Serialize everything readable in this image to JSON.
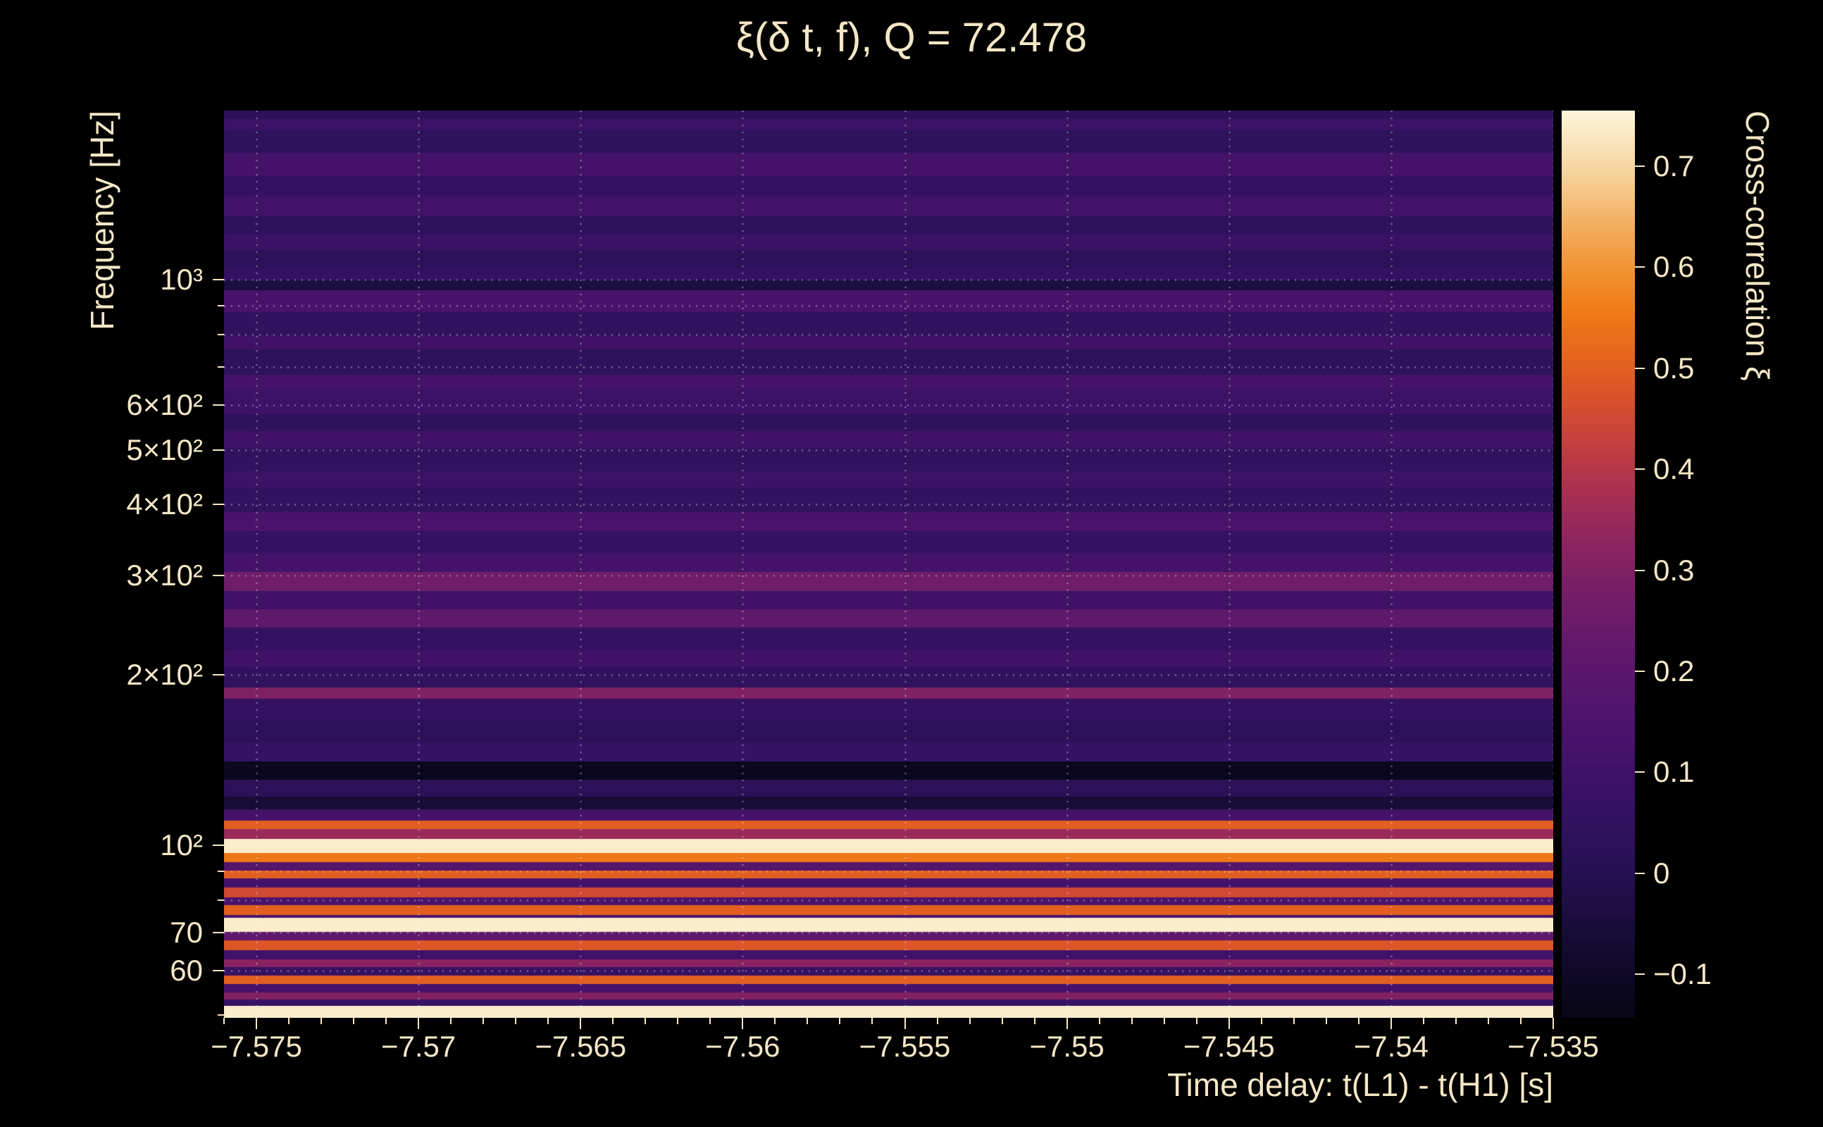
{
  "chart_data": {
    "type": "heatmap",
    "title": "ξ(δ t, f), Q = 72.478",
    "xlabel": "Time delay: t(L1) - t(H1) [s]",
    "ylabel": "Frequency [Hz]",
    "colorbar_label": "Cross-correlation ξ",
    "x_range": [
      -7.576,
      -7.535
    ],
    "x_minor_step": 0.001,
    "y_range_hz": [
      49.5,
      1990
    ],
    "y_scale": "log",
    "color_range": [
      -0.143,
      0.755
    ],
    "x_ticks": [
      {
        "v": -7.575,
        "label": "−7.575"
      },
      {
        "v": -7.57,
        "label": "−7.57"
      },
      {
        "v": -7.565,
        "label": "−7.565"
      },
      {
        "v": -7.56,
        "label": "−7.56"
      },
      {
        "v": -7.555,
        "label": "−7.555"
      },
      {
        "v": -7.55,
        "label": "−7.55"
      },
      {
        "v": -7.545,
        "label": "−7.545"
      },
      {
        "v": -7.54,
        "label": "−7.54"
      },
      {
        "v": -7.535,
        "label": "−7.535"
      }
    ],
    "y_ticks": [
      {
        "v": 1000,
        "label": "10³"
      },
      {
        "v": 600,
        "label": "6×10²"
      },
      {
        "v": 500,
        "label": "5×10²"
      },
      {
        "v": 400,
        "label": "4×10²"
      },
      {
        "v": 300,
        "label": "3×10²"
      },
      {
        "v": 200,
        "label": "2×10²"
      },
      {
        "v": 100,
        "label": "10²"
      },
      {
        "v": 70,
        "label": "70"
      },
      {
        "v": 60,
        "label": "60"
      }
    ],
    "y_minor_ticks": [
      50,
      80,
      90,
      700,
      800,
      900
    ],
    "grid_y": [
      60,
      70,
      80,
      90,
      100,
      200,
      300,
      400,
      500,
      600,
      700,
      800,
      900,
      1000
    ],
    "colorbar_ticks": [
      {
        "v": 0.7,
        "label": "0.7"
      },
      {
        "v": 0.6,
        "label": "0.6"
      },
      {
        "v": 0.5,
        "label": "0.5"
      },
      {
        "v": 0.4,
        "label": "0.4"
      },
      {
        "v": 0.3,
        "label": "0.3"
      },
      {
        "v": 0.2,
        "label": "0.2"
      },
      {
        "v": 0.1,
        "label": "0.1"
      },
      {
        "v": 0,
        "label": "0"
      },
      {
        "v": -0.1,
        "label": "−0.1"
      }
    ],
    "colormap_stops": [
      [
        0.0,
        "#070515"
      ],
      [
        0.08,
        "#140b31"
      ],
      [
        0.16,
        "#251153"
      ],
      [
        0.24,
        "#371264"
      ],
      [
        0.32,
        "#4b136b"
      ],
      [
        0.4,
        "#5f186c"
      ],
      [
        0.46,
        "#731d68"
      ],
      [
        0.52,
        "#8b2460"
      ],
      [
        0.58,
        "#a93052"
      ],
      [
        0.63,
        "#c23f40"
      ],
      [
        0.68,
        "#d8502c"
      ],
      [
        0.73,
        "#e6651d"
      ],
      [
        0.78,
        "#f07c16"
      ],
      [
        0.83,
        "#f29537"
      ],
      [
        0.88,
        "#f3b265"
      ],
      [
        0.93,
        "#f6d39b"
      ],
      [
        1.0,
        "#fdf5dc"
      ]
    ],
    "bands": [
      [
        49.5,
        52,
        0.74
      ],
      [
        52,
        53.5,
        0.08
      ],
      [
        53.5,
        55,
        0.3
      ],
      [
        55,
        57,
        0.12
      ],
      [
        57,
        59,
        0.5
      ],
      [
        59,
        61,
        0.07
      ],
      [
        61,
        63,
        0.32
      ],
      [
        63,
        65.5,
        0.1
      ],
      [
        65.5,
        68,
        0.48
      ],
      [
        68,
        70.5,
        0.22
      ],
      [
        70.5,
        74.5,
        0.74
      ],
      [
        74.5,
        75.5,
        0.15
      ],
      [
        75.5,
        78.5,
        0.5
      ],
      [
        78.5,
        81,
        0.14
      ],
      [
        81,
        84.5,
        0.45
      ],
      [
        84.5,
        87.5,
        0.12
      ],
      [
        87.5,
        90.5,
        0.5
      ],
      [
        90.5,
        93.5,
        0.18
      ],
      [
        93.5,
        97,
        0.55
      ],
      [
        97,
        103,
        0.74
      ],
      [
        103,
        107,
        0.35
      ],
      [
        107,
        111,
        0.5
      ],
      [
        111,
        116,
        0.12
      ],
      [
        116,
        122,
        -0.06
      ],
      [
        122,
        131,
        0.02
      ],
      [
        131,
        141,
        -0.12
      ],
      [
        141,
        152,
        0.07
      ],
      [
        152,
        167,
        0.03
      ],
      [
        167,
        182,
        0.06
      ],
      [
        182,
        191,
        0.3
      ],
      [
        191,
        207,
        0.05
      ],
      [
        207,
        222,
        0.1
      ],
      [
        222,
        243,
        0.06
      ],
      [
        243,
        262,
        0.22
      ],
      [
        262,
        282,
        0.1
      ],
      [
        282,
        305,
        0.26
      ],
      [
        305,
        330,
        0.12
      ],
      [
        330,
        360,
        0.06
      ],
      [
        360,
        390,
        0.14
      ],
      [
        390,
        430,
        0.05
      ],
      [
        430,
        460,
        0.09
      ],
      [
        460,
        505,
        0.05
      ],
      [
        505,
        540,
        0.1
      ],
      [
        540,
        580,
        0.04
      ],
      [
        580,
        640,
        0.09
      ],
      [
        640,
        680,
        0.12
      ],
      [
        680,
        755,
        0.04
      ],
      [
        755,
        800,
        0.1
      ],
      [
        800,
        880,
        0.05
      ],
      [
        880,
        960,
        0.13
      ],
      [
        960,
        1000,
        -0.04
      ],
      [
        1000,
        1050,
        0.06
      ],
      [
        1050,
        1130,
        0.03
      ],
      [
        1130,
        1210,
        0.08
      ],
      [
        1210,
        1300,
        0.04
      ],
      [
        1300,
        1410,
        0.11
      ],
      [
        1410,
        1530,
        0.06
      ],
      [
        1530,
        1680,
        0.12
      ],
      [
        1680,
        1840,
        0.04
      ],
      [
        1840,
        1930,
        0.09
      ],
      [
        1930,
        1990,
        0.03
      ]
    ],
    "colors": {
      "background": "#000000",
      "text": "#f4e7c6",
      "grid": "#ffffff"
    }
  }
}
